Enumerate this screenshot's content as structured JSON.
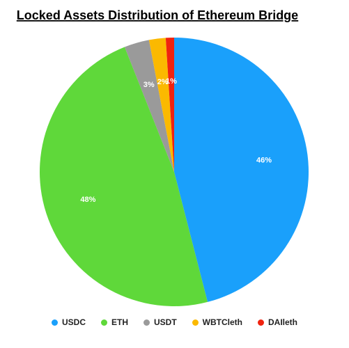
{
  "chart_data": {
    "type": "pie",
    "title": "Locked Assets Distribution of Ethereum Bridge",
    "categories": [
      "USDC",
      "ETH",
      "USDT",
      "WBTCleth",
      "DAIleth"
    ],
    "values": [
      46,
      48,
      3,
      2,
      1
    ],
    "value_labels": [
      "46%",
      "48%",
      "3%",
      "2%",
      "1%"
    ],
    "colors": [
      "#1aa0fb",
      "#5fd83a",
      "#9a9a9a",
      "#fbb900",
      "#f0230f"
    ]
  }
}
